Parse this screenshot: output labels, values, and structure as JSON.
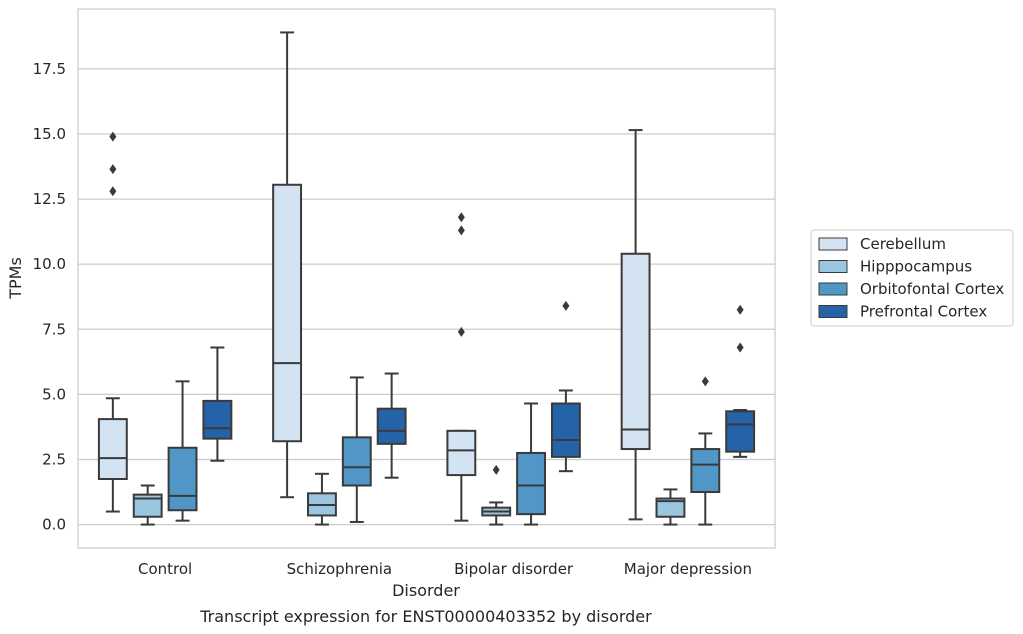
{
  "chart_data": {
    "type": "box",
    "xlabel": "Disorder",
    "ylabel": "TPMs",
    "caption": "Transcript expression for ENST00000403352 by disorder",
    "ylim": [
      -0.9,
      19.8
    ],
    "yticks": [
      0.0,
      2.5,
      5.0,
      7.5,
      10.0,
      12.5,
      15.0,
      17.5
    ],
    "ytick_labels": [
      "0.0",
      "2.5",
      "5.0",
      "7.5",
      "10.0",
      "12.5",
      "15.0",
      "17.5"
    ],
    "grid": "horizontal",
    "legend_position": "right",
    "categories": [
      "Control",
      "Schizophrenia",
      "Bipolar disorder",
      "Major depression"
    ],
    "series": [
      {
        "name": "Cerebellum",
        "color": "#d4e3f2",
        "boxes": [
          {
            "whisker_low": 0.5,
            "q1": 1.75,
            "median": 2.55,
            "q3": 4.05,
            "whisker_high": 4.85,
            "outliers": [
              12.8,
              13.65,
              14.9
            ]
          },
          {
            "whisker_low": 1.05,
            "q1": 3.2,
            "median": 6.2,
            "q3": 13.05,
            "whisker_high": 18.9,
            "outliers": []
          },
          {
            "whisker_low": 0.15,
            "q1": 1.9,
            "median": 2.85,
            "q3": 3.6,
            "whisker_high": 3.6,
            "outliers": [
              7.4,
              11.3,
              11.8
            ]
          },
          {
            "whisker_low": 0.2,
            "q1": 2.9,
            "median": 3.65,
            "q3": 10.4,
            "whisker_high": 15.15,
            "outliers": []
          }
        ]
      },
      {
        "name": "Hipppocampus",
        "color": "#9ac6e0",
        "boxes": [
          {
            "whisker_low": 0.0,
            "q1": 0.3,
            "median": 1.0,
            "q3": 1.15,
            "whisker_high": 1.5,
            "outliers": []
          },
          {
            "whisker_low": 0.0,
            "q1": 0.35,
            "median": 0.75,
            "q3": 1.2,
            "whisker_high": 1.95,
            "outliers": []
          },
          {
            "whisker_low": 0.0,
            "q1": 0.35,
            "median": 0.5,
            "q3": 0.65,
            "whisker_high": 0.85,
            "outliers": [
              2.1
            ]
          },
          {
            "whisker_low": 0.0,
            "q1": 0.3,
            "median": 0.9,
            "q3": 1.0,
            "whisker_high": 1.35,
            "outliers": []
          }
        ]
      },
      {
        "name": "Orbitofontal Cortex",
        "color": "#5096c7",
        "boxes": [
          {
            "whisker_low": 0.15,
            "q1": 0.55,
            "median": 1.1,
            "q3": 2.95,
            "whisker_high": 5.5,
            "outliers": []
          },
          {
            "whisker_low": 0.1,
            "q1": 1.5,
            "median": 2.2,
            "q3": 3.35,
            "whisker_high": 5.65,
            "outliers": []
          },
          {
            "whisker_low": 0.0,
            "q1": 0.4,
            "median": 1.5,
            "q3": 2.75,
            "whisker_high": 4.65,
            "outliers": []
          },
          {
            "whisker_low": 0.0,
            "q1": 1.25,
            "median": 2.3,
            "q3": 2.9,
            "whisker_high": 3.5,
            "outliers": [
              5.5
            ]
          }
        ]
      },
      {
        "name": "Prefrontal Cortex",
        "color": "#2563a8",
        "boxes": [
          {
            "whisker_low": 2.45,
            "q1": 3.3,
            "median": 3.7,
            "q3": 4.75,
            "whisker_high": 6.8,
            "outliers": []
          },
          {
            "whisker_low": 1.8,
            "q1": 3.1,
            "median": 3.6,
            "q3": 4.45,
            "whisker_high": 5.8,
            "outliers": []
          },
          {
            "whisker_low": 2.05,
            "q1": 2.6,
            "median": 3.25,
            "q3": 4.65,
            "whisker_high": 5.15,
            "outliers": [
              8.4
            ]
          },
          {
            "whisker_low": 2.6,
            "q1": 2.8,
            "median": 3.85,
            "q3": 4.35,
            "whisker_high": 4.4,
            "outliers": [
              6.8,
              8.25
            ]
          }
        ]
      }
    ]
  }
}
